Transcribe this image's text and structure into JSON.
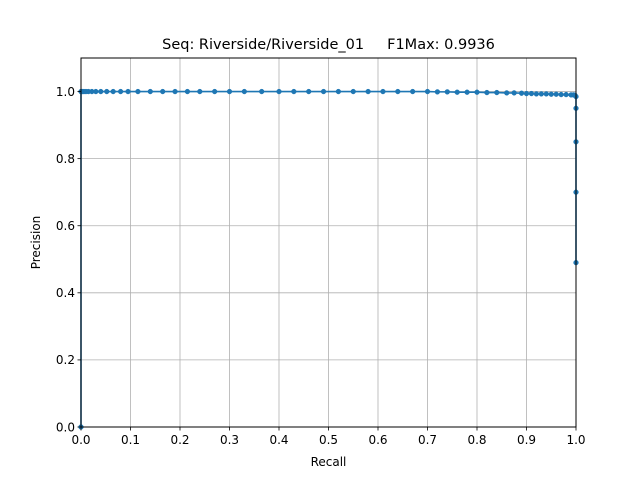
{
  "chart_data": {
    "type": "line",
    "title": "Seq: Riverside/Riverside_01     F1Max: 0.9936",
    "xlabel": "Recall",
    "ylabel": "Precision",
    "xlim": [
      0,
      1
    ],
    "ylim": [
      0,
      1.1
    ],
    "xticks": [
      "0.0",
      "0.1",
      "0.2",
      "0.3",
      "0.4",
      "0.5",
      "0.6",
      "0.7",
      "0.8",
      "0.9",
      "1.0"
    ],
    "yticks": [
      "0.0",
      "0.2",
      "0.4",
      "0.6",
      "0.8",
      "1.0"
    ],
    "grid": true,
    "series": [
      {
        "color": "#1f77b4",
        "marker": "circle",
        "x": [
          0.0,
          0.0,
          0.001,
          0.003,
          0.006,
          0.01,
          0.015,
          0.022,
          0.03,
          0.04,
          0.052,
          0.065,
          0.08,
          0.095,
          0.115,
          0.14,
          0.165,
          0.19,
          0.215,
          0.24,
          0.27,
          0.3,
          0.33,
          0.365,
          0.4,
          0.43,
          0.46,
          0.49,
          0.52,
          0.55,
          0.58,
          0.61,
          0.64,
          0.67,
          0.7,
          0.72,
          0.74,
          0.76,
          0.78,
          0.8,
          0.82,
          0.84,
          0.86,
          0.875,
          0.89,
          0.9,
          0.91,
          0.92,
          0.93,
          0.94,
          0.95,
          0.96,
          0.97,
          0.98,
          0.99,
          0.995,
          0.998,
          1.0,
          1.0,
          1.0,
          1.0,
          1.0
        ],
        "y": [
          0.0,
          1.0,
          1.0,
          1.0,
          1.0,
          1.0,
          1.0,
          1.0,
          1.0,
          1.0,
          1.0,
          1.0,
          1.0,
          1.0,
          1.0,
          1.0,
          1.0,
          1.0,
          1.0,
          1.0,
          1.0,
          1.0,
          1.0,
          1.0,
          1.0,
          1.0,
          1.0,
          1.0,
          1.0,
          1.0,
          1.0,
          1.0,
          1.0,
          1.0,
          1.0,
          0.999,
          0.999,
          0.998,
          0.998,
          0.998,
          0.997,
          0.997,
          0.996,
          0.996,
          0.995,
          0.994,
          0.994,
          0.993,
          0.993,
          0.993,
          0.992,
          0.992,
          0.991,
          0.991,
          0.99,
          0.99,
          0.989,
          0.985,
          0.95,
          0.85,
          0.7,
          0.49
        ]
      }
    ]
  }
}
